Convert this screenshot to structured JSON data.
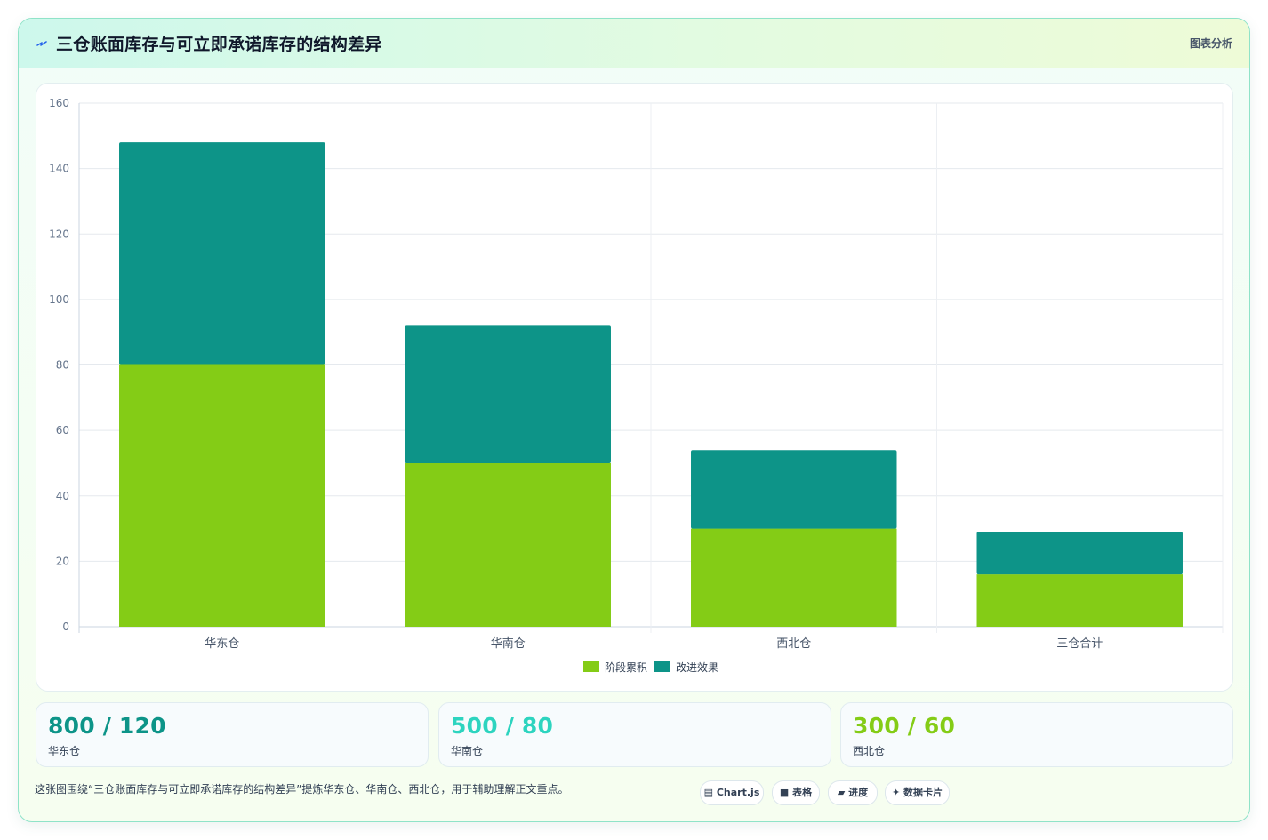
{
  "header": {
    "title": "三仓账面库存与可立即承诺库存的结构差异",
    "badge": "图表分析"
  },
  "colors": {
    "series_green": "#84cc16",
    "series_teal": "#0d9488",
    "accent_teal": "#0d9488",
    "accent_cyan": "#2dd4bf",
    "accent_lime": "#84cc16"
  },
  "chart_data": {
    "type": "bar",
    "stacked": true,
    "categories": [
      "华东仓",
      "华南仓",
      "西北仓",
      "三仓合计"
    ],
    "series": [
      {
        "name": "阶段累积",
        "color": "#84cc16",
        "values": [
          80,
          50,
          30,
          16
        ]
      },
      {
        "name": "改进效果",
        "color": "#0d9488",
        "values": [
          68,
          42,
          24,
          13
        ]
      }
    ],
    "ylim": [
      0,
      160
    ],
    "yticks": [
      0,
      20,
      40,
      60,
      80,
      100,
      120,
      140,
      160
    ],
    "grid": true,
    "legend": "bottom-center"
  },
  "stats": [
    {
      "value": "800 / 120",
      "label": "华东仓",
      "color": "#0d9488"
    },
    {
      "value": "500 / 80",
      "label": "华南仓",
      "color": "#2dd4bf"
    },
    {
      "value": "300 / 60",
      "label": "西北仓",
      "color": "#84cc16"
    }
  ],
  "footer": {
    "text": "这张图围绕“三仓账面库存与可立即承诺库存的结构差异”提炼华东仓、华南仓、西北仓，用于辅助理解正文重点。",
    "tags": [
      {
        "icon": "chart-icon",
        "label": "Chart.js"
      },
      {
        "icon": "table-icon",
        "label": "表格"
      },
      {
        "icon": "progress-icon",
        "label": "进度"
      },
      {
        "icon": "sparkle-icon",
        "label": "数据卡片"
      }
    ]
  }
}
